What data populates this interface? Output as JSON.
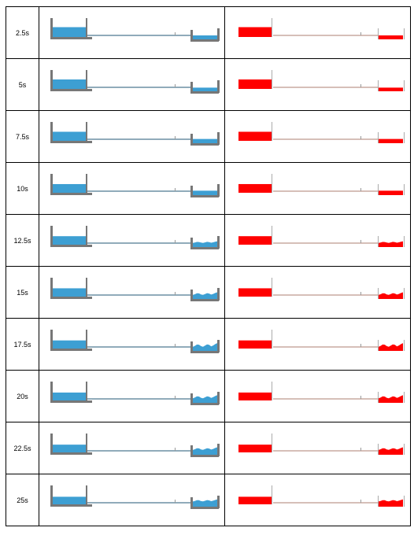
{
  "colors": {
    "water": "#3d9fd3",
    "tank_wall": "#777777",
    "field_high": "#ff0000",
    "pipe_line": "#b0b0b0"
  },
  "rows": [
    {
      "time": "2.5s",
      "left_tank_level": 0.52,
      "right_tank_level": 0.25,
      "right_wave": 0.0
    },
    {
      "time": "5s",
      "left_tank_level": 0.5,
      "right_tank_level": 0.22,
      "right_wave": 0.0
    },
    {
      "time": "7.5s",
      "left_tank_level": 0.48,
      "right_tank_level": 0.28,
      "right_wave": 0.0
    },
    {
      "time": "10s",
      "left_tank_level": 0.46,
      "right_tank_level": 0.3,
      "right_wave": 0.0
    },
    {
      "time": "12.5s",
      "left_tank_level": 0.45,
      "right_tank_level": 0.33,
      "right_wave": 0.3
    },
    {
      "time": "15s",
      "left_tank_level": 0.44,
      "right_tank_level": 0.36,
      "right_wave": 0.5
    },
    {
      "time": "17.5s",
      "left_tank_level": 0.43,
      "right_tank_level": 0.4,
      "right_wave": 0.7
    },
    {
      "time": "20s",
      "left_tank_level": 0.42,
      "right_tank_level": 0.42,
      "right_wave": 0.6
    },
    {
      "time": "22.5s",
      "left_tank_level": 0.41,
      "right_tank_level": 0.44,
      "right_wave": 0.5
    },
    {
      "time": "25s",
      "left_tank_level": 0.4,
      "right_tank_level": 0.46,
      "right_wave": 0.4
    }
  ]
}
